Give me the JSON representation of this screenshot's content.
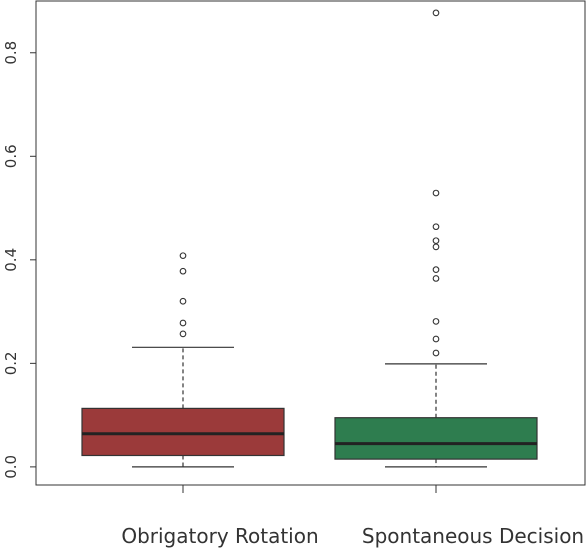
{
  "chart_data": {
    "type": "boxplot",
    "title": "",
    "xlabel": "",
    "ylabel": "",
    "ylim": [
      -0.035,
      0.9
    ],
    "yticks": [
      "0.0",
      "0.2",
      "0.4",
      "0.6",
      "0.8"
    ],
    "ytick_values": [
      0.0,
      0.2,
      0.4,
      0.6,
      0.8
    ],
    "grid": false,
    "categories": [
      "Obrigatory Rotation",
      "Spontaneous Decision"
    ],
    "boxes": [
      {
        "label": "Obrigatory Rotation",
        "color": "#9b3a3a",
        "whisker_low": 0.0,
        "q1": 0.022,
        "median": 0.064,
        "q3": 0.113,
        "whisker_high": 0.231,
        "outliers": [
          0.257,
          0.278,
          0.32,
          0.378,
          0.408
        ]
      },
      {
        "label": "Spontaneous Decision",
        "color": "#2e7d4f",
        "whisker_low": 0.0,
        "q1": 0.015,
        "median": 0.045,
        "q3": 0.095,
        "whisker_high": 0.199,
        "outliers": [
          0.22,
          0.247,
          0.281,
          0.364,
          0.381,
          0.425,
          0.437,
          0.464,
          0.529,
          0.877
        ]
      }
    ]
  }
}
